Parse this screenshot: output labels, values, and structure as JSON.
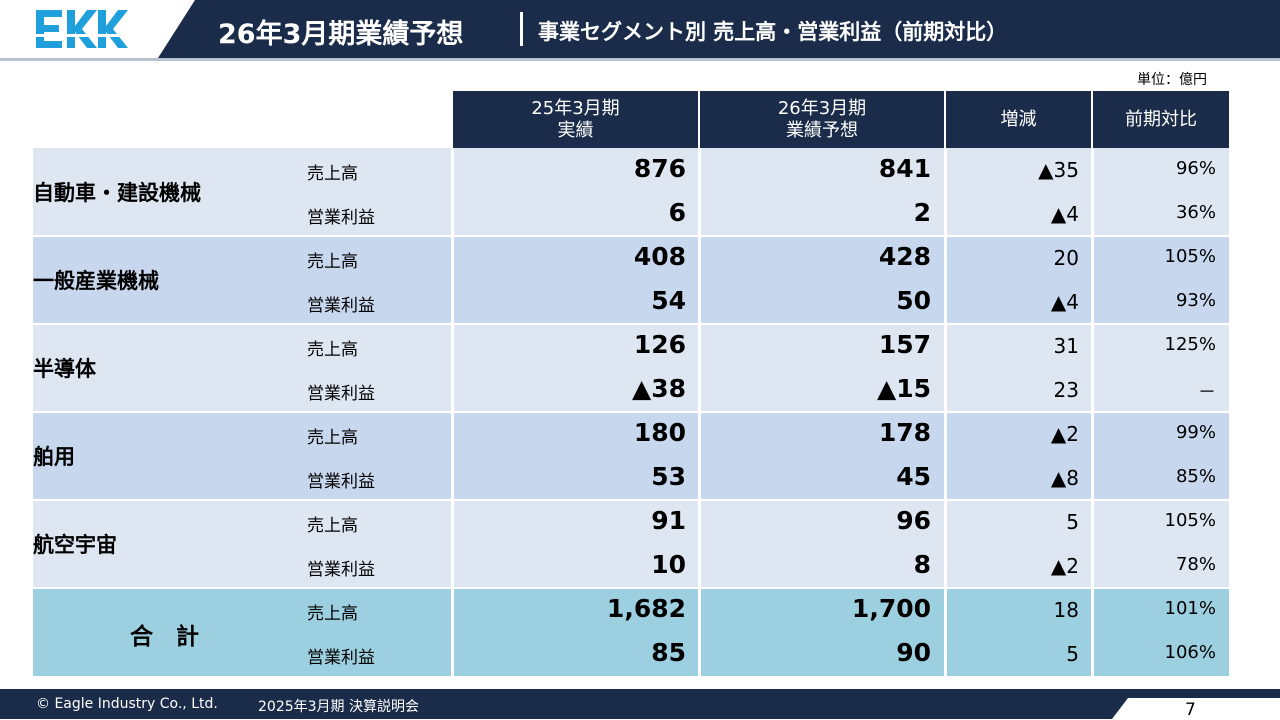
{
  "header": {
    "logo_text": "EKK",
    "title": "26年3月期業績予想",
    "subtitle": "事業セグメント別 売上高・営業利益（前期対比）"
  },
  "unit": "単位：億円",
  "table": {
    "columns": [
      {
        "line1": "25年3月期",
        "line2": "実績"
      },
      {
        "line1": "26年3月期",
        "line2": "業績予想"
      },
      {
        "line1": "増減",
        "line2": ""
      },
      {
        "line1": "前期対比",
        "line2": ""
      }
    ],
    "segments": [
      {
        "name": "自動車・建設機械",
        "color": "#dee6f2",
        "rows": [
          {
            "label": "売上高",
            "fy25": "876",
            "fy26": "841",
            "diff": "▲35",
            "ratio": "96%"
          },
          {
            "label": "営業利益",
            "fy25": "6",
            "fy26": "2",
            "diff": "▲4",
            "ratio": "36%"
          }
        ]
      },
      {
        "name": "一般産業機械",
        "color": "#c7d7ee",
        "rows": [
          {
            "label": "売上高",
            "fy25": "408",
            "fy26": "428",
            "diff": "20",
            "ratio": "105%"
          },
          {
            "label": "営業利益",
            "fy25": "54",
            "fy26": "50",
            "diff": "▲4",
            "ratio": "93%"
          }
        ]
      },
      {
        "name": "半導体",
        "color": "#dee6f2",
        "rows": [
          {
            "label": "売上高",
            "fy25": "126",
            "fy26": "157",
            "diff": "31",
            "ratio": "125%"
          },
          {
            "label": "営業利益",
            "fy25": "▲38",
            "fy26": "▲15",
            "diff": "23",
            "ratio": "－"
          }
        ]
      },
      {
        "name": "舶用",
        "color": "#c7d7ee",
        "rows": [
          {
            "label": "売上高",
            "fy25": "180",
            "fy26": "178",
            "diff": "▲2",
            "ratio": "99%"
          },
          {
            "label": "営業利益",
            "fy25": "53",
            "fy26": "45",
            "diff": "▲8",
            "ratio": "85%"
          }
        ]
      },
      {
        "name": "航空宇宙",
        "color": "#dee6f2",
        "rows": [
          {
            "label": "売上高",
            "fy25": "91",
            "fy26": "96",
            "diff": "5",
            "ratio": "105%"
          },
          {
            "label": "営業利益",
            "fy25": "10",
            "fy26": "8",
            "diff": "▲2",
            "ratio": "78%"
          }
        ]
      },
      {
        "name": "合　計",
        "color": "#9ccfdf",
        "rows": [
          {
            "label": "売上高",
            "fy25": "1,682",
            "fy26": "1,700",
            "diff": "18",
            "ratio": "101%"
          },
          {
            "label": "営業利益",
            "fy25": "85",
            "fy26": "90",
            "diff": "5",
            "ratio": "106%"
          }
        ]
      }
    ]
  },
  "footer": {
    "copyright": "© Eagle Industry Co., Ltd.",
    "event": "2025年3月期 決算説明会",
    "page": "7"
  }
}
